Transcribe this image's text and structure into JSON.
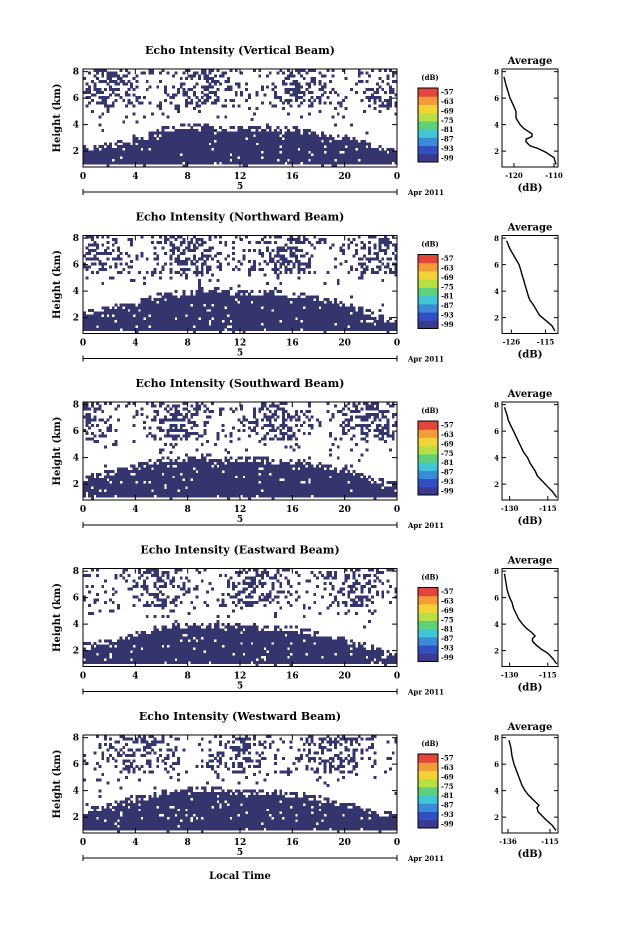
{
  "x_axis_label": "Local Time",
  "colorbar": {
    "unit": "(dB)",
    "labels": [
      "-57",
      "-63",
      "-69",
      "-75",
      "-81",
      "-87",
      "-93",
      "-99"
    ],
    "colors": [
      "#3a3a8e",
      "#2f4fc2",
      "#3b8bd9",
      "#3fc7d6",
      "#5fd17a",
      "#b8e044",
      "#f2d235",
      "#f49b3a",
      "#e2453a"
    ]
  },
  "fill_color": "#35356e",
  "chart_data": [
    {
      "type": "heatmap",
      "title": "Echo Intensity (Vertical Beam)",
      "ylabel": "Height (km)",
      "xlabel": "Local Time",
      "x_ticks": [
        "0",
        "4",
        "8",
        "12",
        "16",
        "20",
        "0"
      ],
      "y_ticks": [
        "2",
        "4",
        "6",
        "8"
      ],
      "xlim": [
        0,
        24
      ],
      "ylim": [
        0.8,
        8.2
      ],
      "date_center": "5",
      "date_right": "Apr 2011",
      "echo_top": [
        2.2,
        2.3,
        2.4,
        2.6,
        2.8,
        3.2,
        3.6,
        3.8,
        3.8,
        3.8,
        3.7,
        3.7,
        3.7,
        3.6,
        3.6,
        3.6,
        3.5,
        3.4,
        3.2,
        3.0,
        2.7,
        2.4,
        2.1,
        1.9
      ],
      "profile": {
        "title": "Average",
        "xlabel": "(dB)",
        "x_ticks": [
          "-120",
          "-110"
        ],
        "x_tick_values": [
          -120,
          -110
        ],
        "y_ticks": [
          "2",
          "4",
          "6",
          "8"
        ],
        "xlim": [
          -123,
          -109
        ],
        "ylim": [
          0.8,
          8.2
        ],
        "x": [
          -109.5,
          -110,
          -112,
          -114,
          -116,
          -117,
          -117,
          -115.5,
          -115.5,
          -116.5,
          -117.5,
          -118.5,
          -119.5,
          -119.5,
          -120.2,
          -121,
          -121.5,
          -122,
          -122.5
        ],
        "y": [
          1.0,
          1.5,
          1.9,
          2.2,
          2.4,
          2.7,
          2.9,
          3.1,
          3.3,
          3.5,
          3.7,
          4.0,
          4.5,
          5.0,
          5.5,
          6.0,
          6.5,
          7.0,
          7.6
        ]
      }
    },
    {
      "type": "heatmap",
      "title": "Echo Intensity (Northward Beam)",
      "ylabel": "Height (km)",
      "xlabel": "Local Time",
      "x_ticks": [
        "0",
        "4",
        "8",
        "12",
        "16",
        "20",
        "0"
      ],
      "y_ticks": [
        "2",
        "4",
        "6",
        "8"
      ],
      "xlim": [
        0,
        24
      ],
      "ylim": [
        0.8,
        8.2
      ],
      "date_center": "5",
      "date_right": "Apr 2011",
      "echo_top": [
        2.3,
        2.5,
        2.7,
        2.9,
        3.1,
        3.4,
        3.7,
        3.9,
        3.9,
        4.0,
        4.0,
        3.9,
        3.9,
        3.8,
        3.8,
        3.7,
        3.6,
        3.5,
        3.3,
        3.0,
        2.7,
        2.3,
        1.9,
        1.7
      ],
      "profile": {
        "title": "Average",
        "xlabel": "(dB)",
        "x_ticks": [
          "-126",
          "-115"
        ],
        "x_tick_values": [
          -126,
          -115
        ],
        "y_ticks": [
          "2",
          "4",
          "6",
          "8"
        ],
        "xlim": [
          -129,
          -111
        ],
        "ylim": [
          0.8,
          8.2
        ],
        "x": [
          -112,
          -113,
          -115,
          -117,
          -118,
          -119,
          -120,
          -120.5,
          -121,
          -121.5,
          -122,
          -122.5,
          -123,
          -123.5,
          -124.5,
          -125.5,
          -126.5,
          -127,
          -127.5
        ],
        "y": [
          1.0,
          1.4,
          1.8,
          2.2,
          2.6,
          3.0,
          3.3,
          3.6,
          4.0,
          4.4,
          4.8,
          5.2,
          5.6,
          6.0,
          6.4,
          6.8,
          7.2,
          7.5,
          7.8
        ]
      }
    },
    {
      "type": "heatmap",
      "title": "Echo Intensity (Southward Beam)",
      "ylabel": "Height (km)",
      "xlabel": "Local Time",
      "x_ticks": [
        "0",
        "4",
        "8",
        "12",
        "16",
        "20",
        "0"
      ],
      "y_ticks": [
        "2",
        "4",
        "6",
        "8"
      ],
      "xlim": [
        0,
        24
      ],
      "ylim": [
        0.8,
        8.2
      ],
      "date_center": "5",
      "date_right": "Apr 2011",
      "echo_top": [
        2.4,
        2.6,
        2.8,
        3.1,
        3.3,
        3.6,
        3.8,
        3.9,
        3.9,
        4.0,
        3.9,
        3.9,
        3.8,
        3.8,
        3.7,
        3.6,
        3.6,
        3.4,
        3.2,
        3.0,
        2.7,
        2.4,
        2.1,
        1.9
      ],
      "profile": {
        "title": "Average",
        "xlabel": "(dB)",
        "x_ticks": [
          "-130",
          "-115"
        ],
        "x_tick_values": [
          -130,
          -115
        ],
        "y_ticks": [
          "2",
          "4",
          "6",
          "8"
        ],
        "xlim": [
          -133,
          -111
        ],
        "ylim": [
          0.8,
          8.2
        ],
        "x": [
          -111.5,
          -113,
          -115,
          -117,
          -119,
          -120,
          -121,
          -122,
          -123,
          -124.5,
          -125.5,
          -126.5,
          -127.5,
          -128.5,
          -129.5,
          -130.5,
          -131,
          -131.5,
          -132
        ],
        "y": [
          1.0,
          1.4,
          1.8,
          2.2,
          2.6,
          3.0,
          3.3,
          3.6,
          4.0,
          4.4,
          4.8,
          5.2,
          5.6,
          6.0,
          6.4,
          6.8,
          7.2,
          7.5,
          7.8
        ]
      }
    },
    {
      "type": "heatmap",
      "title": "Echo Intensity (Eastward Beam)",
      "ylabel": "Height (km)",
      "xlabel": "Local Time",
      "x_ticks": [
        "0",
        "4",
        "8",
        "12",
        "16",
        "20",
        "0"
      ],
      "y_ticks": [
        "2",
        "4",
        "6",
        "8"
      ],
      "xlim": [
        0,
        24
      ],
      "ylim": [
        0.8,
        8.2
      ],
      "date_center": "5",
      "date_right": "Apr 2011",
      "echo_top": [
        2.3,
        2.5,
        2.7,
        2.9,
        3.2,
        3.5,
        3.7,
        3.8,
        3.9,
        3.9,
        3.9,
        3.8,
        3.8,
        3.7,
        3.7,
        3.6,
        3.5,
        3.3,
        3.1,
        2.8,
        2.5,
        2.2,
        1.9,
        1.7
      ],
      "profile": {
        "title": "Average",
        "xlabel": "(dB)",
        "x_ticks": [
          "-130",
          "-115"
        ],
        "x_tick_values": [
          -130,
          -115
        ],
        "y_ticks": [
          "2",
          "4",
          "6",
          "8"
        ],
        "xlim": [
          -133,
          -111
        ],
        "ylim": [
          0.8,
          8.2
        ],
        "x": [
          -111.5,
          -113,
          -115,
          -117.5,
          -119.5,
          -121,
          -121,
          -120,
          -121.5,
          -123.5,
          -125,
          -126.5,
          -127.5,
          -128.5,
          -129,
          -130,
          -131,
          -131.5,
          -132
        ],
        "y": [
          1.0,
          1.4,
          1.8,
          2.1,
          2.4,
          2.7,
          2.9,
          3.1,
          3.4,
          3.7,
          4.0,
          4.4,
          4.8,
          5.2,
          5.6,
          6.0,
          6.6,
          7.2,
          7.8
        ]
      }
    },
    {
      "type": "heatmap",
      "title": "Echo Intensity (Westward Beam)",
      "ylabel": "Height (km)",
      "xlabel": "Local Time",
      "x_ticks": [
        "0",
        "4",
        "8",
        "12",
        "16",
        "20",
        "0"
      ],
      "y_ticks": [
        "2",
        "4",
        "6",
        "8"
      ],
      "xlim": [
        0,
        24
      ],
      "ylim": [
        0.8,
        8.2
      ],
      "date_center": "5",
      "date_right": "Apr 2011",
      "echo_top": [
        2.4,
        2.6,
        2.8,
        3.1,
        3.3,
        3.6,
        3.8,
        3.9,
        4.0,
        4.0,
        4.0,
        3.9,
        3.9,
        3.8,
        3.8,
        3.7,
        3.6,
        3.4,
        3.2,
        3.0,
        2.7,
        2.4,
        2.2,
        2.0
      ],
      "profile": {
        "title": "Average",
        "xlabel": "(dB)",
        "x_ticks": [
          "-136",
          "-115"
        ],
        "x_tick_values": [
          -136,
          -115
        ],
        "y_ticks": [
          "2",
          "4",
          "6",
          "8"
        ],
        "xlim": [
          -139,
          -111
        ],
        "ylim": [
          0.8,
          8.2
        ],
        "x": [
          -112,
          -114,
          -117,
          -119,
          -121,
          -121.5,
          -120.5,
          -122,
          -124,
          -126,
          -127.5,
          -129,
          -130,
          -131,
          -132,
          -133,
          -134,
          -134.5,
          -135.5
        ],
        "y": [
          1.0,
          1.4,
          1.8,
          2.1,
          2.4,
          2.7,
          2.9,
          3.1,
          3.4,
          3.7,
          4.0,
          4.4,
          4.8,
          5.2,
          5.6,
          6.0,
          6.6,
          7.2,
          7.8
        ]
      }
    }
  ]
}
